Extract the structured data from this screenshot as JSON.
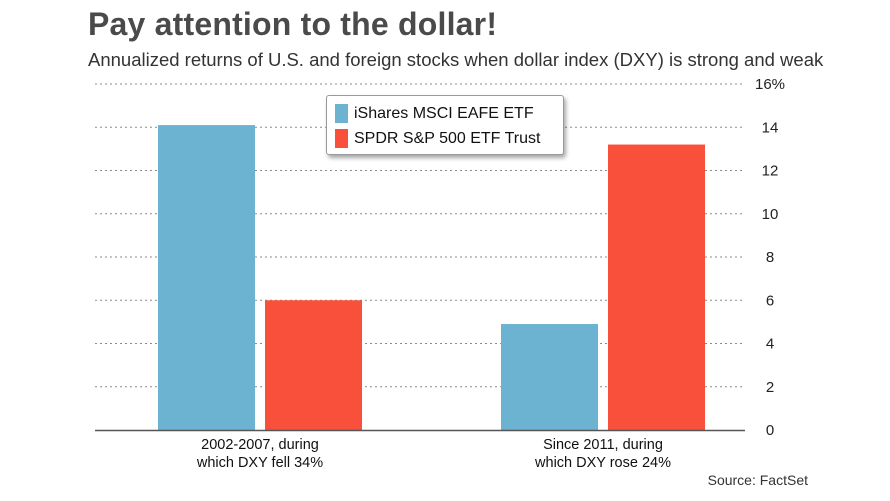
{
  "title": "Pay attention to the dollar!",
  "subtitle": "Annualized returns of U.S. and foreign stocks when dollar index (DXY) is strong and weak",
  "source": "Source: FactSet",
  "colors": {
    "eafe": "#6bb3d1",
    "spy": "#f9503b",
    "grid": "#8a8a8a",
    "axis": "#555555"
  },
  "legend": [
    {
      "label": "iShares MSCI EAFE ETF",
      "color": "#6bb3d1"
    },
    {
      "label": "SPDR S&P 500 ETF Trust",
      "color": "#f9503b"
    }
  ],
  "chart_data": {
    "type": "bar",
    "categories": [
      [
        "2002-2007, during",
        "which DXY fell 34%"
      ],
      [
        "Since 2011, during",
        "which DXY rose 24%"
      ]
    ],
    "series": [
      {
        "name": "iShares MSCI EAFE ETF",
        "values": [
          14.1,
          4.9
        ]
      },
      {
        "name": "SPDR S&P 500 ETF Trust",
        "values": [
          6.0,
          13.2
        ]
      }
    ],
    "ylim": [
      0,
      16
    ],
    "yticks": [
      0,
      2,
      4,
      6,
      8,
      10,
      12,
      14,
      16
    ],
    "ytick_labels": [
      "0",
      "2",
      "4",
      "6",
      "8",
      "10",
      "12",
      "14",
      "16%"
    ],
    "ylabel": "",
    "xlabel": "",
    "grid": true,
    "y_axis_side": "right",
    "legend_position": "top-center"
  }
}
